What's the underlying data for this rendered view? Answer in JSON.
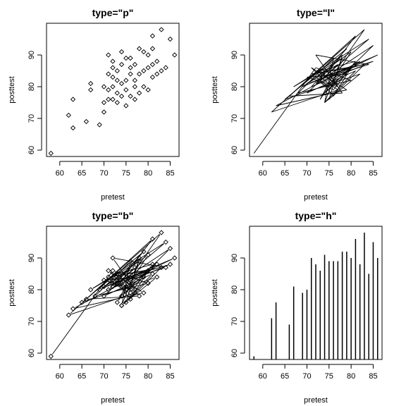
{
  "chart_data": [
    {
      "type": "scatter",
      "plot_type_code": "p",
      "title": "type=\"p\"",
      "xlabel": "pretest",
      "ylabel": "posttest",
      "xlim": [
        57,
        87
      ],
      "ylim": [
        58,
        100
      ],
      "xticks": [
        60,
        65,
        70,
        75,
        80,
        85
      ],
      "yticks": [
        60,
        70,
        80,
        90
      ],
      "x": [
        58,
        62,
        63,
        63,
        66,
        67,
        67,
        69,
        70,
        70,
        71,
        71,
        71,
        71,
        72,
        72,
        72,
        72,
        73,
        73,
        73,
        74,
        74,
        74,
        74,
        75,
        75,
        75,
        76,
        76,
        76,
        77,
        77,
        77,
        78,
        78,
        78,
        79,
        79,
        80,
        80,
        80,
        81,
        81,
        81,
        82,
        82,
        83,
        83,
        84,
        85,
        86,
        72,
        75,
        77,
        79,
        70,
        73,
        76,
        81
      ],
      "y": [
        59,
        71,
        67,
        76,
        69,
        79,
        81,
        68,
        75,
        80,
        76,
        79,
        84,
        90,
        76,
        80,
        83,
        86,
        75,
        78,
        85,
        77,
        81,
        87,
        91,
        74,
        79,
        89,
        77,
        84,
        89,
        76,
        82,
        87,
        78,
        84,
        92,
        80,
        91,
        79,
        86,
        90,
        83,
        87,
        96,
        84,
        88,
        85,
        98,
        86,
        95,
        90,
        88,
        82,
        80,
        85,
        72,
        82,
        86,
        92
      ]
    },
    {
      "type": "line",
      "plot_type_code": "l",
      "title": "type=\"l\"",
      "xlabel": "pretest",
      "ylabel": "posttest",
      "xlim": [
        57,
        87
      ],
      "ylim": [
        58,
        100
      ],
      "xticks": [
        60,
        65,
        70,
        75,
        80,
        85
      ],
      "yticks": [
        60,
        70,
        80,
        90
      ],
      "x": [
        58,
        72,
        80,
        68,
        76,
        74,
        82,
        65,
        79,
        71,
        85,
        73,
        77,
        62,
        81,
        75,
        70,
        84,
        72,
        78,
        66,
        83,
        76,
        73,
        80,
        69,
        86,
        74,
        71,
        79,
        63,
        82,
        75,
        72,
        77,
        70,
        81,
        74,
        78,
        67,
        84,
        73,
        76,
        80,
        71,
        83,
        75,
        78,
        72,
        85,
        74,
        79,
        70,
        77,
        73,
        81,
        76,
        72,
        80,
        75
      ],
      "y": [
        59,
        86,
        82,
        78,
        89,
        75,
        84,
        76,
        92,
        80,
        88,
        83,
        79,
        72,
        96,
        85,
        81,
        87,
        90,
        78,
        77,
        98,
        84,
        76,
        91,
        80,
        90,
        82,
        86,
        79,
        74,
        88,
        80,
        83,
        87,
        78,
        85,
        75,
        89,
        80,
        95,
        82,
        77,
        86,
        84,
        87,
        76,
        90,
        81,
        93,
        78,
        84,
        83,
        80,
        85,
        88,
        79,
        82,
        86,
        81
      ]
    },
    {
      "type": "line",
      "plot_type_code": "b",
      "title": "type=\"b\"",
      "xlabel": "pretest",
      "ylabel": "posttest",
      "xlim": [
        57,
        87
      ],
      "ylim": [
        58,
        100
      ],
      "xticks": [
        60,
        65,
        70,
        75,
        80,
        85
      ],
      "yticks": [
        60,
        70,
        80,
        90
      ],
      "x": [
        58,
        72,
        80,
        68,
        76,
        74,
        82,
        65,
        79,
        71,
        85,
        73,
        77,
        62,
        81,
        75,
        70,
        84,
        72,
        78,
        66,
        83,
        76,
        73,
        80,
        69,
        86,
        74,
        71,
        79,
        63,
        82,
        75,
        72,
        77,
        70,
        81,
        74,
        78,
        67,
        84,
        73,
        76,
        80,
        71,
        83,
        75,
        78,
        72,
        85,
        74,
        79,
        70,
        77,
        73,
        81,
        76,
        72,
        80,
        75
      ],
      "y": [
        59,
        86,
        82,
        78,
        89,
        75,
        84,
        76,
        92,
        80,
        88,
        83,
        79,
        72,
        96,
        85,
        81,
        87,
        90,
        78,
        77,
        98,
        84,
        76,
        91,
        80,
        90,
        82,
        86,
        79,
        74,
        88,
        80,
        83,
        87,
        78,
        85,
        75,
        89,
        80,
        95,
        82,
        77,
        86,
        84,
        87,
        76,
        90,
        81,
        93,
        78,
        84,
        83,
        80,
        85,
        88,
        79,
        82,
        86,
        81
      ]
    },
    {
      "type": "bar",
      "plot_type_code": "h",
      "title": "type=\"h\"",
      "xlabel": "pretest",
      "ylabel": "posttest",
      "xlim": [
        57,
        87
      ],
      "ylim": [
        58,
        100
      ],
      "xticks": [
        60,
        65,
        70,
        75,
        80,
        85
      ],
      "yticks": [
        60,
        70,
        80,
        90
      ],
      "x": [
        58,
        62,
        63,
        66,
        67,
        69,
        70,
        71,
        72,
        73,
        74,
        75,
        76,
        77,
        78,
        79,
        80,
        81,
        82,
        83,
        84,
        85,
        86
      ],
      "y": [
        59,
        71,
        76,
        69,
        81,
        79,
        80,
        90,
        88,
        86,
        91,
        89,
        89,
        89,
        92,
        92,
        90,
        96,
        88,
        98,
        85,
        95,
        90
      ]
    }
  ]
}
